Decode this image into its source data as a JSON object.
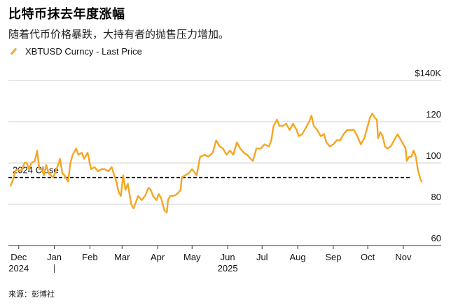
{
  "header": {
    "title": "比特币抹去年度涨幅",
    "subtitle": "随着代币价格暴跌，大持有者的抛售压力增加。",
    "legend_label": "XBTUSD Curncy - Last Price",
    "source": "来源：彭博社"
  },
  "colors": {
    "series": "#f5a623",
    "grid": "#d0d0d0",
    "reference": "#000000"
  },
  "chart_data": {
    "type": "line",
    "title": "比特币抹去年度涨幅",
    "series": [
      {
        "name": "XBTUSD Curncy - Last Price",
        "points": [
          [
            "2024-11-24",
            89
          ],
          [
            "2024-11-26",
            92
          ],
          [
            "2024-11-28",
            96
          ],
          [
            "2024-11-30",
            97
          ],
          [
            "2024-12-02",
            96
          ],
          [
            "2024-12-04",
            97
          ],
          [
            "2024-12-06",
            100
          ],
          [
            "2024-12-08",
            100
          ],
          [
            "2024-12-10",
            97
          ],
          [
            "2024-12-12",
            100
          ],
          [
            "2024-12-15",
            101
          ],
          [
            "2024-12-17",
            106
          ],
          [
            "2024-12-19",
            97
          ],
          [
            "2024-12-21",
            97
          ],
          [
            "2024-12-23",
            94
          ],
          [
            "2024-12-25",
            99
          ],
          [
            "2024-12-27",
            95
          ],
          [
            "2024-12-29",
            94
          ],
          [
            "2024-12-31",
            93
          ],
          [
            "2025-01-03",
            97
          ],
          [
            "2025-01-06",
            102
          ],
          [
            "2025-01-08",
            95
          ],
          [
            "2025-01-10",
            94
          ],
          [
            "2025-01-13",
            91
          ],
          [
            "2025-01-15",
            100
          ],
          [
            "2025-01-17",
            104
          ],
          [
            "2025-01-20",
            107
          ],
          [
            "2025-01-22",
            104
          ],
          [
            "2025-01-25",
            105
          ],
          [
            "2025-01-27",
            102
          ],
          [
            "2025-01-30",
            105
          ],
          [
            "2025-02-02",
            97
          ],
          [
            "2025-02-05",
            98
          ],
          [
            "2025-02-08",
            96
          ],
          [
            "2025-02-11",
            97
          ],
          [
            "2025-02-14",
            97
          ],
          [
            "2025-02-17",
            96
          ],
          [
            "2025-02-20",
            98
          ],
          [
            "2025-02-24",
            91
          ],
          [
            "2025-02-26",
            86
          ],
          [
            "2025-02-28",
            84
          ],
          [
            "2025-03-02",
            94
          ],
          [
            "2025-03-04",
            87
          ],
          [
            "2025-03-06",
            90
          ],
          [
            "2025-03-09",
            80
          ],
          [
            "2025-03-11",
            78
          ],
          [
            "2025-03-13",
            81
          ],
          [
            "2025-03-15",
            84
          ],
          [
            "2025-03-18",
            82
          ],
          [
            "2025-03-21",
            84
          ],
          [
            "2025-03-24",
            88
          ],
          [
            "2025-03-26",
            87
          ],
          [
            "2025-03-28",
            84
          ],
          [
            "2025-03-31",
            82
          ],
          [
            "2025-04-02",
            85
          ],
          [
            "2025-04-04",
            83
          ],
          [
            "2025-04-07",
            77
          ],
          [
            "2025-04-09",
            76
          ],
          [
            "2025-04-10",
            82
          ],
          [
            "2025-04-12",
            84
          ],
          [
            "2025-04-15",
            84
          ],
          [
            "2025-04-18",
            85
          ],
          [
            "2025-04-21",
            87
          ],
          [
            "2025-04-22",
            93
          ],
          [
            "2025-04-25",
            94
          ],
          [
            "2025-04-28",
            95
          ],
          [
            "2025-05-01",
            97
          ],
          [
            "2025-05-05",
            94
          ],
          [
            "2025-05-08",
            103
          ],
          [
            "2025-05-12",
            104
          ],
          [
            "2025-05-15",
            103
          ],
          [
            "2025-05-19",
            105
          ],
          [
            "2025-05-22",
            111
          ],
          [
            "2025-05-25",
            108
          ],
          [
            "2025-05-28",
            107
          ],
          [
            "2025-05-31",
            104
          ],
          [
            "2025-06-03",
            106
          ],
          [
            "2025-06-06",
            104
          ],
          [
            "2025-06-09",
            110
          ],
          [
            "2025-06-12",
            107
          ],
          [
            "2025-06-15",
            105
          ],
          [
            "2025-06-18",
            104
          ],
          [
            "2025-06-21",
            102
          ],
          [
            "2025-06-23",
            101
          ],
          [
            "2025-06-26",
            107
          ],
          [
            "2025-06-30",
            107
          ],
          [
            "2025-07-03",
            109
          ],
          [
            "2025-07-07",
            108
          ],
          [
            "2025-07-09",
            111
          ],
          [
            "2025-07-11",
            118
          ],
          [
            "2025-07-14",
            121
          ],
          [
            "2025-07-16",
            118
          ],
          [
            "2025-07-19",
            118
          ],
          [
            "2025-07-22",
            119
          ],
          [
            "2025-07-25",
            116
          ],
          [
            "2025-07-28",
            119
          ],
          [
            "2025-07-31",
            116
          ],
          [
            "2025-08-02",
            113
          ],
          [
            "2025-08-05",
            114
          ],
          [
            "2025-08-08",
            117
          ],
          [
            "2025-08-11",
            120
          ],
          [
            "2025-08-13",
            123
          ],
          [
            "2025-08-15",
            118
          ],
          [
            "2025-08-18",
            116
          ],
          [
            "2025-08-21",
            113
          ],
          [
            "2025-08-24",
            114
          ],
          [
            "2025-08-26",
            110
          ],
          [
            "2025-08-29",
            108
          ],
          [
            "2025-09-01",
            109
          ],
          [
            "2025-09-04",
            111
          ],
          [
            "2025-09-07",
            111
          ],
          [
            "2025-09-10",
            114
          ],
          [
            "2025-09-13",
            116
          ],
          [
            "2025-09-16",
            116
          ],
          [
            "2025-09-19",
            116
          ],
          [
            "2025-09-22",
            113
          ],
          [
            "2025-09-25",
            109
          ],
          [
            "2025-09-28",
            112
          ],
          [
            "2025-10-01",
            118
          ],
          [
            "2025-10-03",
            122
          ],
          [
            "2025-10-05",
            124
          ],
          [
            "2025-10-07",
            122
          ],
          [
            "2025-10-09",
            121
          ],
          [
            "2025-10-10",
            112
          ],
          [
            "2025-10-12",
            115
          ],
          [
            "2025-10-14",
            113
          ],
          [
            "2025-10-16",
            108
          ],
          [
            "2025-10-18",
            107
          ],
          [
            "2025-10-21",
            108
          ],
          [
            "2025-10-24",
            111
          ],
          [
            "2025-10-27",
            114
          ],
          [
            "2025-10-29",
            112
          ],
          [
            "2025-10-31",
            110
          ],
          [
            "2025-11-03",
            107
          ],
          [
            "2025-11-04",
            101
          ],
          [
            "2025-11-06",
            103
          ],
          [
            "2025-11-08",
            103
          ],
          [
            "2025-11-10",
            106
          ],
          [
            "2025-11-12",
            103
          ],
          [
            "2025-11-13",
            99
          ],
          [
            "2025-11-14",
            96
          ],
          [
            "2025-11-16",
            92
          ],
          [
            "2025-11-17",
            91
          ]
        ]
      }
    ],
    "reference_line": {
      "label": "2024 Close",
      "value": 93
    },
    "x_ticks": [
      {
        "label": "Dec",
        "date": "2024-12-01"
      },
      {
        "label": "Jan",
        "date": "2025-01-01"
      },
      {
        "label": "Feb",
        "date": "2025-02-01"
      },
      {
        "label": "Mar",
        "date": "2025-03-01"
      },
      {
        "label": "Apr",
        "date": "2025-04-01"
      },
      {
        "label": "May",
        "date": "2025-05-01"
      },
      {
        "label": "Jun",
        "date": "2025-06-01"
      },
      {
        "label": "Jul",
        "date": "2025-07-01"
      },
      {
        "label": "Aug",
        "date": "2025-08-01"
      },
      {
        "label": "Sep",
        "date": "2025-09-01"
      },
      {
        "label": "Oct",
        "date": "2025-10-01"
      },
      {
        "label": "Nov",
        "date": "2025-11-01"
      }
    ],
    "x_year_labels": [
      {
        "label": "2024",
        "date": "2024-12-01"
      },
      {
        "label": "2025",
        "date": "2025-06-01"
      }
    ],
    "x_range": [
      "2024-11-22",
      "2025-12-04"
    ],
    "y_ticks": [
      {
        "label": "$140K",
        "value": 140
      },
      {
        "label": "120",
        "value": 120
      },
      {
        "label": "100",
        "value": 100
      },
      {
        "label": "80",
        "value": 80
      },
      {
        "label": "60",
        "value": 60
      }
    ],
    "ylim": [
      60,
      140
    ],
    "grid": true
  }
}
